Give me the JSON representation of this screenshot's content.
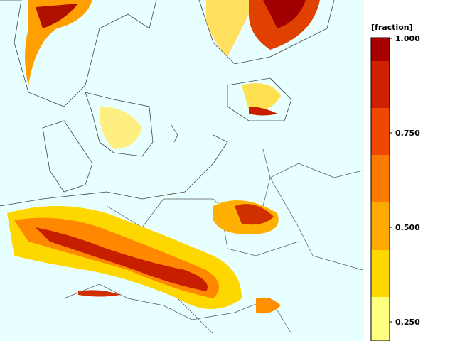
{
  "legend": {
    "unit": "[fraction]",
    "ticks": [
      "1.000",
      "0.750",
      "0.500",
      "0.250"
    ]
  }
}
